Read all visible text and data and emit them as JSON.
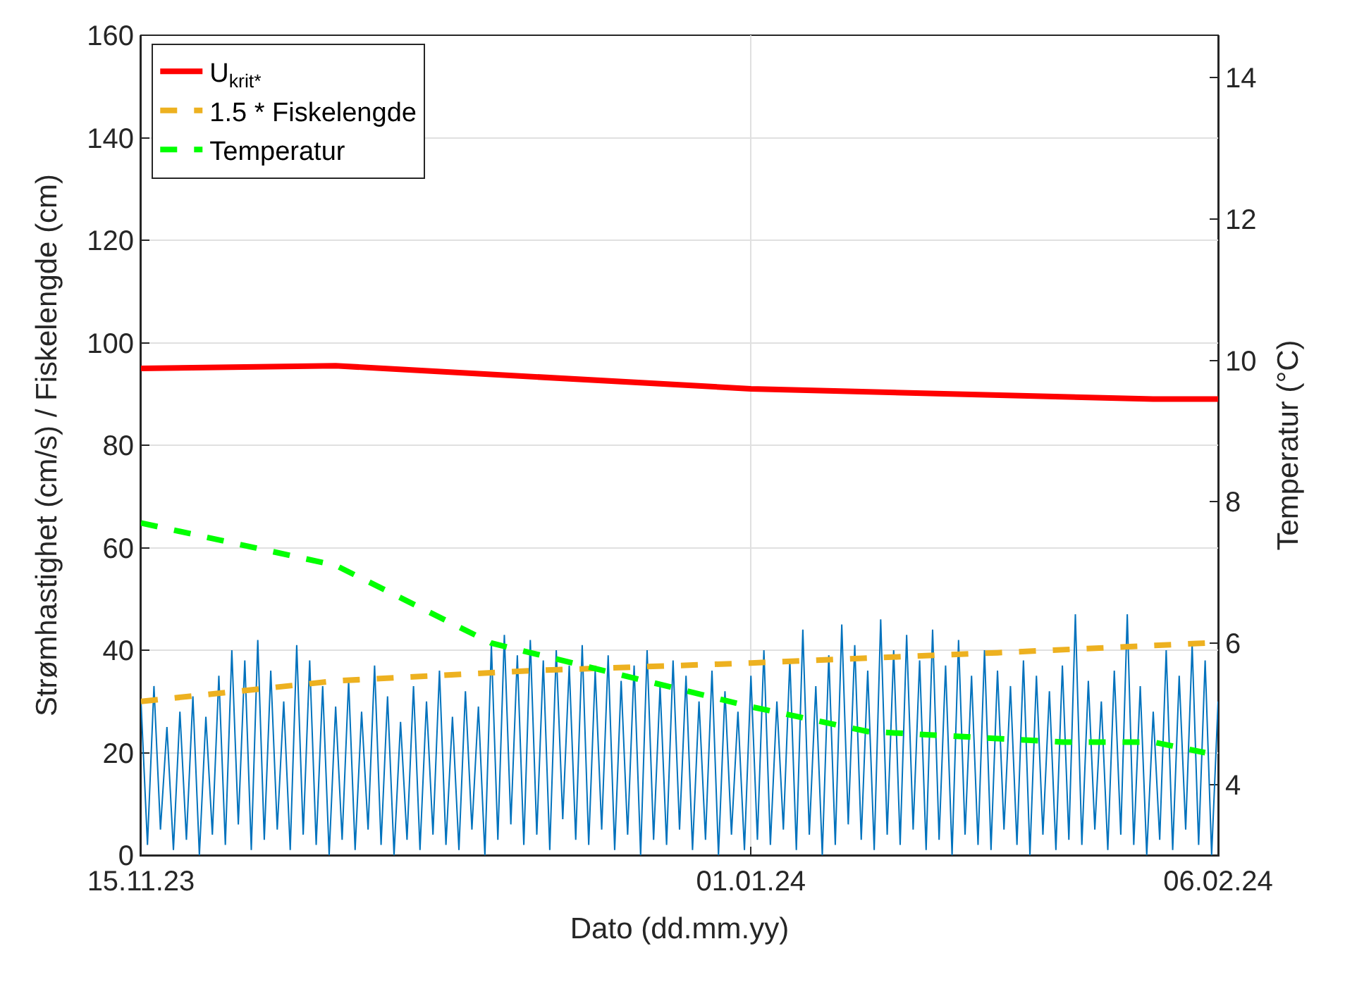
{
  "chart_data": {
    "type": "line",
    "xlabel": "Dato (dd.mm.yy)",
    "ylabel": "Strømhastighet (cm/s) / Fiskelengde (cm)",
    "y2label": "Temperatur (°C)",
    "xlim": [
      "2023-11-15",
      "2024-02-06"
    ],
    "xticks": [
      {
        "value": "2023-11-15",
        "label": "15.11.23"
      },
      {
        "value": "2024-01-01",
        "label": "01.01.24"
      },
      {
        "value": "2024-02-06",
        "label": "06.02.24"
      }
    ],
    "ylim": [
      0,
      160
    ],
    "yticks": [
      0,
      20,
      40,
      60,
      80,
      100,
      120,
      140,
      160
    ],
    "y2lim": [
      3,
      14.6
    ],
    "y2ticks": [
      4,
      6,
      8,
      10,
      12,
      14
    ],
    "grid": true,
    "legend": "top left",
    "line_style": "solid",
    "marker": "none",
    "series": [
      {
        "color": "#0072bd",
        "x": [
          "2023-11-15T00:00",
          "2023-11-15T12:00",
          "2023-11-16T00:00",
          "2023-11-16T12:00",
          "2023-11-17T00:00",
          "2023-11-17T12:00",
          "2023-11-18T00:00",
          "2023-11-18T12:00",
          "2023-11-19T00:00",
          "2023-11-19T12:00",
          "2023-11-20T00:00",
          "2023-11-20T12:00",
          "2023-11-21T00:00",
          "2023-11-21T12:00",
          "2023-11-22T00:00",
          "2023-11-22T12:00",
          "2023-11-23T00:00",
          "2023-11-23T12:00",
          "2023-11-24T00:00",
          "2023-11-24T12:00",
          "2023-11-25T00:00",
          "2023-11-25T12:00",
          "2023-11-26T00:00",
          "2023-11-26T12:00",
          "2023-11-27T00:00",
          "2023-11-27T12:00",
          "2023-11-28T00:00",
          "2023-11-28T12:00",
          "2023-11-29T00:00",
          "2023-11-29T12:00",
          "2023-11-30T00:00",
          "2023-11-30T12:00",
          "2023-12-01T00:00",
          "2023-12-01T12:00",
          "2023-12-02T00:00",
          "2023-12-02T12:00",
          "2023-12-03T00:00",
          "2023-12-03T12:00",
          "2023-12-04T00:00",
          "2023-12-04T12:00",
          "2023-12-05T00:00",
          "2023-12-05T12:00",
          "2023-12-06T00:00",
          "2023-12-06T12:00",
          "2023-12-07T00:00",
          "2023-12-07T12:00",
          "2023-12-08T00:00",
          "2023-12-08T12:00",
          "2023-12-09T00:00",
          "2023-12-09T12:00",
          "2023-12-10T00:00",
          "2023-12-10T12:00",
          "2023-12-11T00:00",
          "2023-12-11T12:00",
          "2023-12-12T00:00",
          "2023-12-12T12:00",
          "2023-12-13T00:00",
          "2023-12-13T12:00",
          "2023-12-14T00:00",
          "2023-12-14T12:00",
          "2023-12-15T00:00",
          "2023-12-15T12:00",
          "2023-12-16T00:00",
          "2023-12-16T12:00",
          "2023-12-17T00:00",
          "2023-12-17T12:00",
          "2023-12-18T00:00",
          "2023-12-18T12:00",
          "2023-12-19T00:00",
          "2023-12-19T12:00",
          "2023-12-20T00:00",
          "2023-12-20T12:00",
          "2023-12-21T00:00",
          "2023-12-21T12:00",
          "2023-12-22T00:00",
          "2023-12-22T12:00",
          "2023-12-23T00:00",
          "2023-12-23T12:00",
          "2023-12-24T00:00",
          "2023-12-24T12:00",
          "2023-12-25T00:00",
          "2023-12-25T12:00",
          "2023-12-26T00:00",
          "2023-12-26T12:00",
          "2023-12-27T00:00",
          "2023-12-27T12:00",
          "2023-12-28T00:00",
          "2023-12-28T12:00",
          "2023-12-29T00:00",
          "2023-12-29T12:00",
          "2023-12-30T00:00",
          "2023-12-30T12:00",
          "2023-12-31T00:00",
          "2023-12-31T12:00",
          "2024-01-01T00:00",
          "2024-01-01T12:00",
          "2024-01-02T00:00",
          "2024-01-02T12:00",
          "2024-01-03T00:00",
          "2024-01-03T12:00",
          "2024-01-04T00:00",
          "2024-01-04T12:00",
          "2024-01-05T00:00",
          "2024-01-05T12:00",
          "2024-01-06T00:00",
          "2024-01-06T12:00",
          "2024-01-07T00:00",
          "2024-01-07T12:00",
          "2024-01-08T00:00",
          "2024-01-08T12:00",
          "2024-01-09T00:00",
          "2024-01-09T12:00",
          "2024-01-10T00:00",
          "2024-01-10T12:00",
          "2024-01-11T00:00",
          "2024-01-11T12:00",
          "2024-01-12T00:00",
          "2024-01-12T12:00",
          "2024-01-13T00:00",
          "2024-01-13T12:00",
          "2024-01-14T00:00",
          "2024-01-14T12:00",
          "2024-01-15T00:00",
          "2024-01-15T12:00",
          "2024-01-16T00:00",
          "2024-01-16T12:00",
          "2024-01-17T00:00",
          "2024-01-17T12:00",
          "2024-01-18T00:00",
          "2024-01-18T12:00",
          "2024-01-19T00:00",
          "2024-01-19T12:00",
          "2024-01-20T00:00",
          "2024-01-20T12:00",
          "2024-01-21T00:00",
          "2024-01-21T12:00",
          "2024-01-22T00:00",
          "2024-01-22T12:00",
          "2024-01-23T00:00",
          "2024-01-23T12:00",
          "2024-01-24T00:00",
          "2024-01-24T12:00",
          "2024-01-25T00:00",
          "2024-01-25T12:00",
          "2024-01-26T00:00",
          "2024-01-26T12:00",
          "2024-01-27T00:00",
          "2024-01-27T12:00",
          "2024-01-28T00:00",
          "2024-01-28T12:00",
          "2024-01-29T00:00",
          "2024-01-29T12:00",
          "2024-01-30T00:00",
          "2024-01-30T12:00",
          "2024-01-31T00:00",
          "2024-01-31T12:00",
          "2024-02-01T00:00",
          "2024-02-01T12:00",
          "2024-02-02T00:00",
          "2024-02-02T12:00",
          "2024-02-03T00:00",
          "2024-02-03T12:00",
          "2024-02-04T00:00",
          "2024-02-04T12:00",
          "2024-02-05T00:00",
          "2024-02-05T12:00",
          "2024-02-06T00:00"
        ],
        "values": [
          30,
          2,
          33,
          5,
          25,
          1,
          28,
          3,
          31,
          0,
          27,
          4,
          35,
          2,
          40,
          6,
          38,
          1,
          42,
          3,
          36,
          5,
          30,
          1,
          41,
          4,
          38,
          2,
          33,
          0,
          29,
          3,
          34,
          1,
          28,
          5,
          37,
          2,
          31,
          0,
          26,
          3,
          33,
          1,
          30,
          4,
          36,
          2,
          27,
          1,
          32,
          5,
          29,
          0,
          41,
          3,
          43,
          6,
          39,
          2,
          42,
          4,
          38,
          1,
          40,
          7,
          37,
          3,
          41,
          2,
          36,
          5,
          39,
          1,
          34,
          4,
          37,
          0,
          40,
          3,
          33,
          2,
          38,
          5,
          35,
          1,
          30,
          3,
          36,
          0,
          32,
          4,
          28,
          1,
          35,
          3,
          40,
          2,
          30,
          5,
          38,
          1,
          44,
          4,
          33,
          0,
          39,
          2,
          45,
          6,
          41,
          3,
          36,
          1,
          46,
          4,
          40,
          2,
          43,
          5,
          38,
          1,
          44,
          3,
          37,
          0,
          42,
          4,
          35,
          2,
          40,
          1,
          36,
          5,
          33,
          2,
          38,
          0,
          35,
          4,
          32,
          1,
          37,
          3,
          47,
          2,
          34,
          5,
          30,
          1,
          36,
          4,
          47,
          2,
          33,
          0,
          28,
          3,
          40,
          1,
          35,
          5,
          41,
          2,
          38,
          0,
          30
        ]
      },
      {
        "name": "U$_{krit*}$",
        "color": "#ff0000",
        "x": [
          "2023-11-15",
          "2023-11-30",
          "2024-01-01",
          "2024-02-01",
          "2024-02-06"
        ],
        "values": [
          95,
          95.5,
          91,
          89,
          89
        ]
      },
      {
        "name": "1.5 * Fiskelengde",
        "color": "#edb120",
        "line_style": "dashed",
        "x": [
          "2023-11-15",
          "2023-11-30",
          "2023-12-15",
          "2024-01-01",
          "2024-01-20",
          "2024-02-06"
        ],
        "values": [
          30,
          34,
          36,
          37.5,
          39.5,
          41.5
        ]
      },
      {
        "name": "Temperatur",
        "color": "#00ff00",
        "line_style": "dashed",
        "axis": "y2",
        "x": [
          "2023-11-15",
          "2023-11-30",
          "2023-12-12",
          "2024-01-01",
          "2024-01-10",
          "2024-01-25",
          "2024-02-01",
          "2024-02-05"
        ],
        "values": [
          7.7,
          7.1,
          6.0,
          5.1,
          4.75,
          4.6,
          4.6,
          4.45
        ]
      }
    ]
  }
}
